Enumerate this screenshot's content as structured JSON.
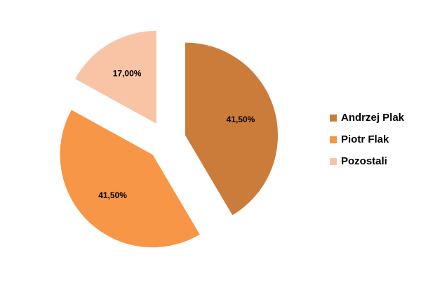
{
  "chart_data": {
    "type": "pie",
    "categories": [
      "Andrzej Plak",
      "Piotr Flak",
      "Pozostali"
    ],
    "values": [
      41.5,
      41.5,
      17
    ],
    "value_labels": [
      "41,50%",
      "41,50%",
      "17,00%"
    ],
    "colors": [
      "#cc7c3a",
      "#f79646",
      "#f9c4a6"
    ],
    "legend": "right"
  }
}
